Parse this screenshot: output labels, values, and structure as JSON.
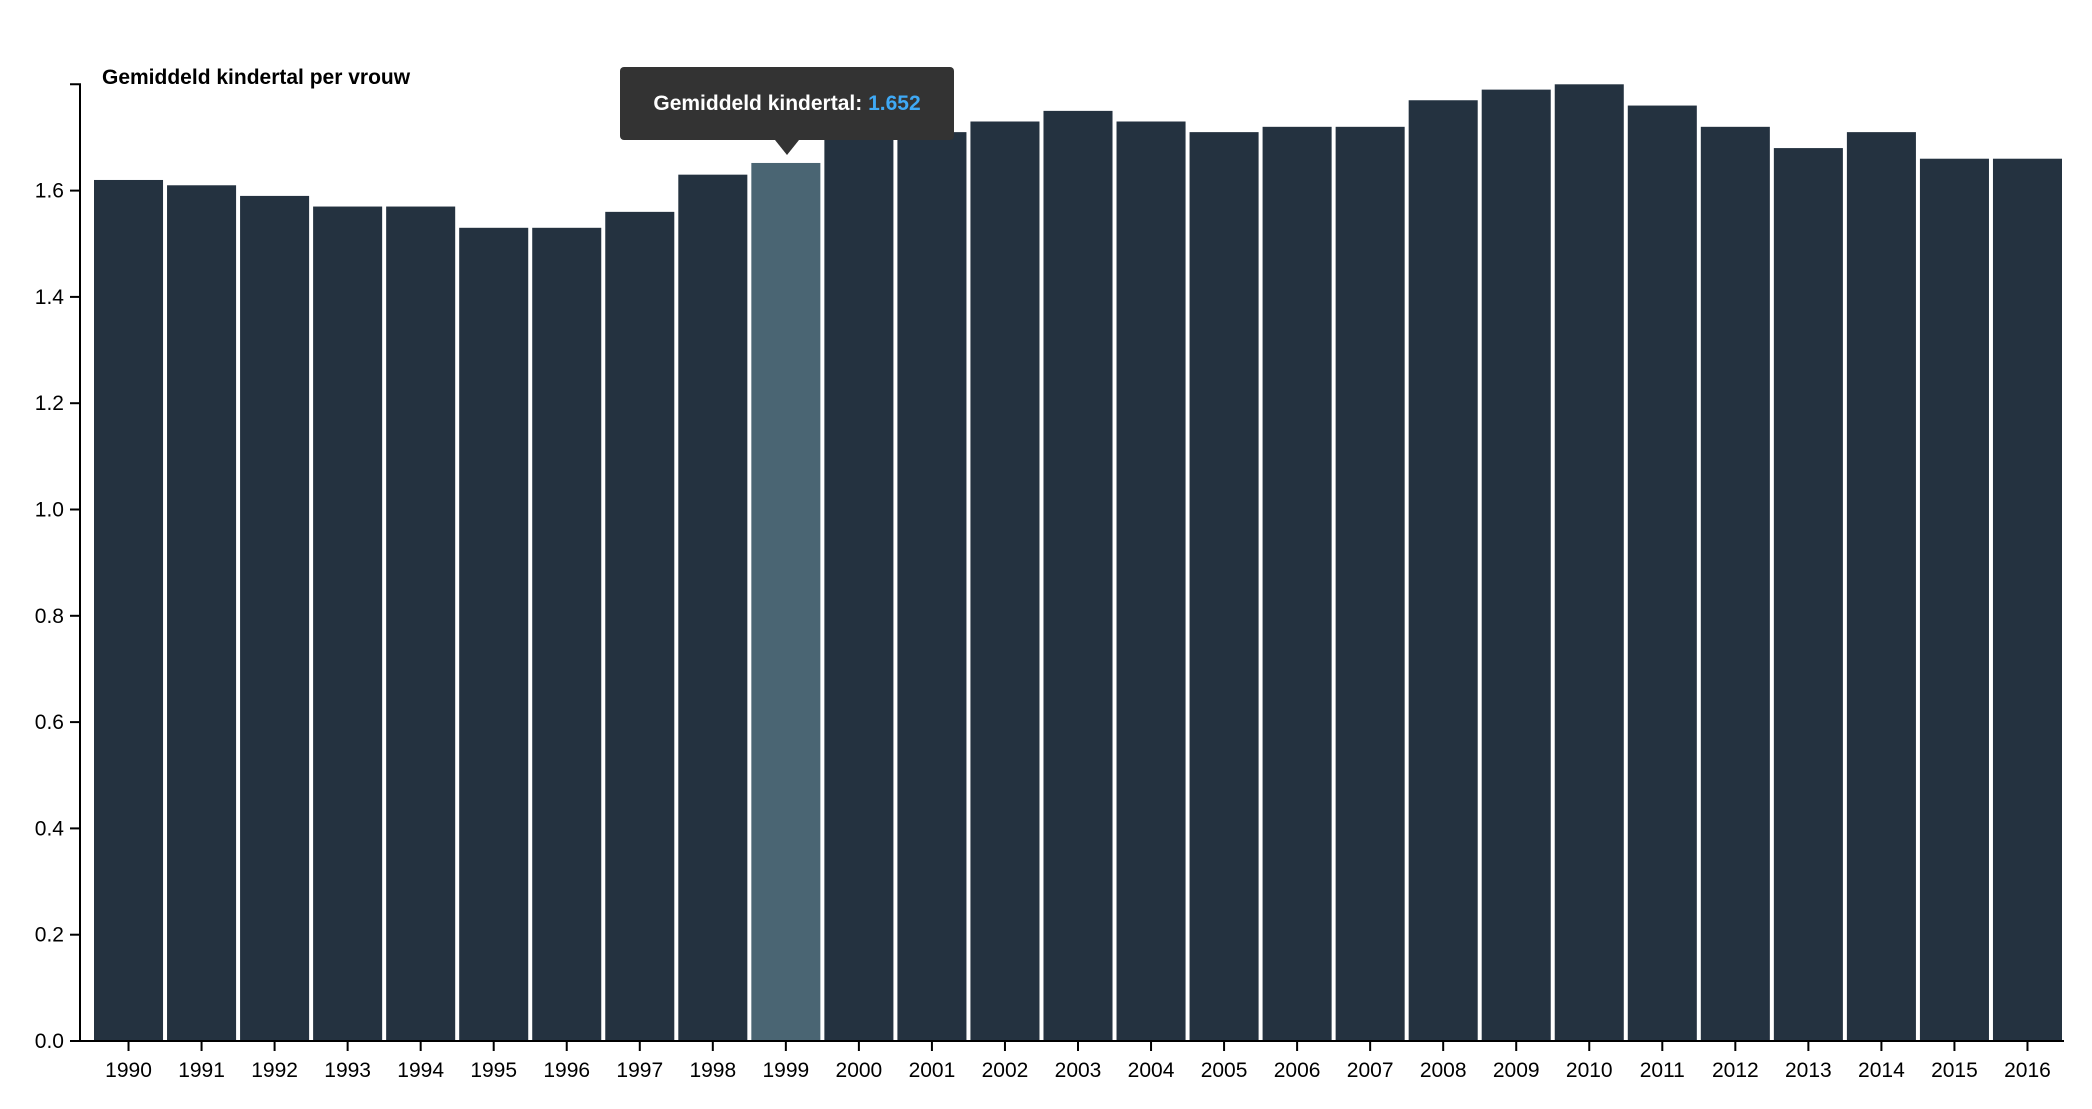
{
  "chart_data": {
    "type": "bar",
    "title": "Gemiddeld kindertal per vrouw",
    "categories": [
      "1990",
      "1991",
      "1992",
      "1993",
      "1994",
      "1995",
      "1996",
      "1997",
      "1998",
      "1999",
      "2000",
      "2001",
      "2002",
      "2003",
      "2004",
      "2005",
      "2006",
      "2007",
      "2008",
      "2009",
      "2010",
      "2011",
      "2012",
      "2013",
      "2014",
      "2015",
      "2016"
    ],
    "values": [
      1.62,
      1.61,
      1.59,
      1.57,
      1.57,
      1.53,
      1.53,
      1.56,
      1.63,
      1.652,
      1.72,
      1.71,
      1.73,
      1.75,
      1.73,
      1.71,
      1.72,
      1.72,
      1.77,
      1.79,
      1.8,
      1.76,
      1.72,
      1.68,
      1.71,
      1.66,
      1.66
    ],
    "ylim": [
      0,
      1.8
    ],
    "yticks": [
      0.0,
      0.2,
      0.4,
      0.6,
      0.8,
      1.0,
      1.2,
      1.4,
      1.6
    ],
    "ytick_labels": [
      "0.0",
      "0.2",
      "0.4",
      "0.6",
      "0.8",
      "1.0",
      "1.2",
      "1.4",
      "1.6"
    ],
    "xlabel": "",
    "ylabel": "",
    "grid": false,
    "highlighted_index": 9,
    "colors": {
      "bar": "#243240",
      "bar_highlight": "#4a6573",
      "axis": "#000000",
      "tooltip_bg": "#333333",
      "tooltip_text": "#ffffff",
      "tooltip_value": "#3fa9f5"
    }
  },
  "tooltip": {
    "label": "Gemiddeld kindertal: ",
    "value": "1.652"
  }
}
